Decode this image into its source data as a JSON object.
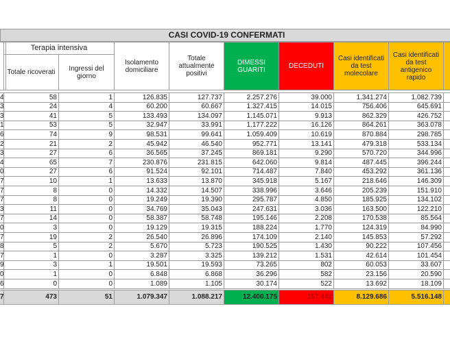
{
  "header": {
    "title": "CASI COVID-19 CONFERMATI",
    "group": "Terapia intensiva",
    "columns": [
      "Totale ricoverati",
      "Ingressi del giorno",
      "Isolamento domiciliare",
      "Totale attualmente positivi",
      "DIMESSI GUARITI",
      "DECEDUTI",
      "Casi identificati da test molecolare",
      "Casi identificati da test antigenico rapido"
    ]
  },
  "table": {
    "rows": [
      [
        "4",
        "58",
        "1",
        "126.835",
        "127.737",
        "2.257.276",
        "39.000",
        "1.341.274",
        "1.082.739"
      ],
      [
        "3",
        "24",
        "4",
        "60.200",
        "60.667",
        "1.327.415",
        "14.015",
        "756.406",
        "645.691"
      ],
      [
        "3",
        "41",
        "5",
        "133.493",
        "134.097",
        "1.145.071",
        "9.913",
        "862.329",
        "426.752"
      ],
      [
        "1",
        "53",
        "5",
        "32.947",
        "33.991",
        "1.177.222",
        "16.126",
        "864.261",
        "363.078"
      ],
      [
        "6",
        "74",
        "9",
        "98.531",
        "99.641",
        "1.059.409",
        "10.619",
        "870.884",
        "298.785"
      ],
      [
        "2",
        "21",
        "2",
        "45.942",
        "46.540",
        "952.771",
        "13.141",
        "479.318",
        "533.134"
      ],
      [
        "3",
        "27",
        "6",
        "36.565",
        "37.245",
        "869.181",
        "9.290",
        "570.720",
        "344.996"
      ],
      [
        "4",
        "65",
        "7",
        "230.876",
        "231.815",
        "642.060",
        "9.814",
        "487.445",
        "396.244"
      ],
      [
        "0",
        "27",
        "6",
        "91.524",
        "92.101",
        "714.487",
        "7.840",
        "453.292",
        "361.136"
      ],
      [
        "7",
        "10",
        "1",
        "13.633",
        "13.870",
        "345.918",
        "5.167",
        "218.646",
        "146.309"
      ],
      [
        "7",
        "8",
        "0",
        "14.332",
        "14.507",
        "338.996",
        "3.646",
        "205.239",
        "151.910"
      ],
      [
        "7",
        "8",
        "0",
        "19.249",
        "19.390",
        "295.787",
        "4.850",
        "185.925",
        "134.102"
      ],
      [
        "3",
        "11",
        "0",
        "34.769",
        "35.043",
        "247.631",
        "3.036",
        "163.500",
        "122.210"
      ],
      [
        "7",
        "14",
        "0",
        "58.387",
        "58.748",
        "195.146",
        "2.208",
        "170.538",
        "85.564"
      ],
      [
        "0",
        "3",
        "0",
        "19.129",
        "19.315",
        "188.224",
        "1.770",
        "124.319",
        "84.990"
      ],
      [
        "7",
        "19",
        "2",
        "26.540",
        "26.896",
        "174.109",
        "2.140",
        "145.853",
        "57.292"
      ],
      [
        "8",
        "5",
        "2",
        "5.670",
        "5.723",
        "190.525",
        "1.430",
        "90.222",
        "107.456"
      ],
      [
        "7",
        "1",
        "0",
        "3.287",
        "3.325",
        "139.212",
        "1.531",
        "42.614",
        "101.454"
      ],
      [
        "9",
        "3",
        "1",
        "19.501",
        "19.593",
        "73.265",
        "802",
        "60.053",
        "33.607"
      ],
      [
        "0",
        "1",
        "0",
        "6.848",
        "6.868",
        "36.296",
        "582",
        "23.156",
        "20.590"
      ],
      [
        "6",
        "0",
        "0",
        "1.089",
        "1.105",
        "30.174",
        "522",
        "13.692",
        "18.109"
      ]
    ],
    "total": [
      "7",
      "473",
      "51",
      "1.079.347",
      "1.088.217",
      "12.400.175",
      "157.442",
      "8.129.686",
      "5.516.148"
    ]
  }
}
